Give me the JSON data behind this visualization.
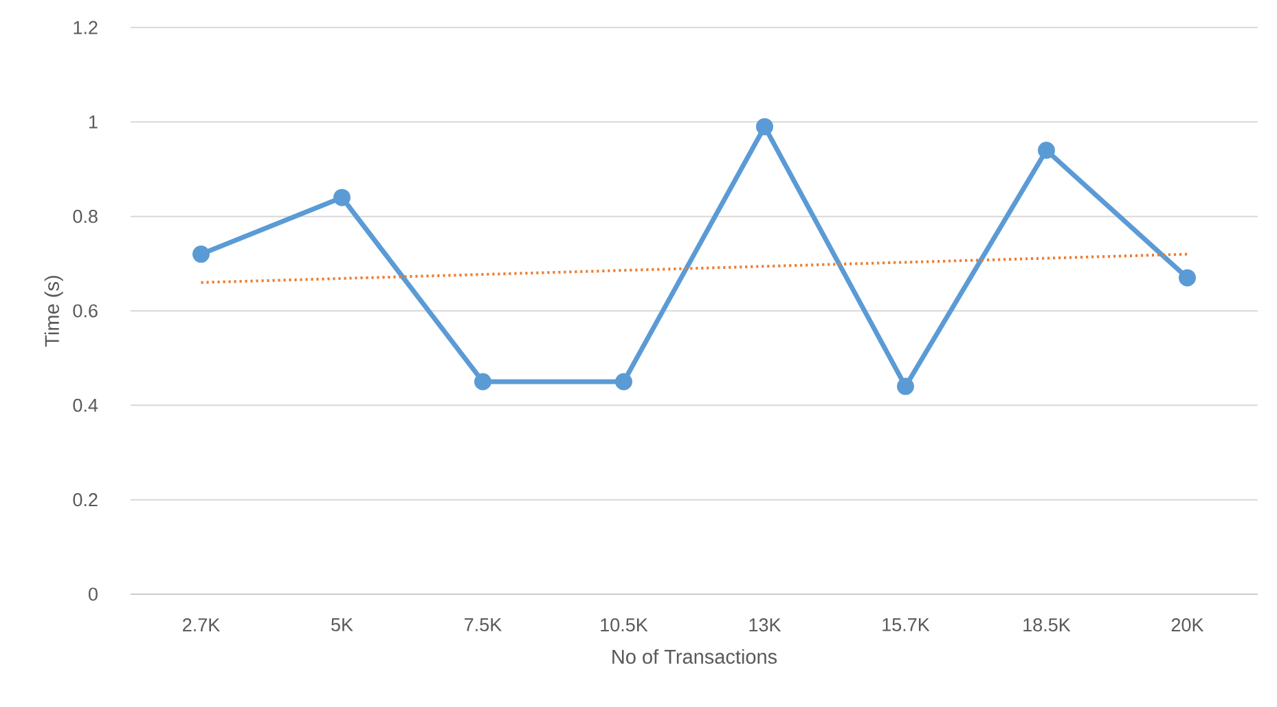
{
  "chart_data": {
    "type": "line",
    "xlabel": "No of Transactions",
    "ylabel": "Time (s)",
    "categories": [
      "2.7K",
      "5K",
      "7.5K",
      "10.5K",
      "13K",
      "15.7K",
      "18.5K",
      "20K"
    ],
    "series": [
      {
        "color": "#5b9bd5",
        "marker": "circle",
        "line_style": "solid",
        "values": [
          0.72,
          0.84,
          0.45,
          0.45,
          0.99,
          0.44,
          0.94,
          0.67
        ]
      },
      {
        "type": "line",
        "color": "#ed7d31",
        "marker": "none",
        "line_style": "dotted",
        "x": [
          "2.7K",
          "20K"
        ],
        "values": [
          0.66,
          0.72
        ]
      }
    ],
    "ylim": [
      0,
      1.2
    ],
    "yticks": [
      0,
      0.2,
      0.4,
      0.6,
      0.8,
      1,
      1.2
    ],
    "grid": "y"
  }
}
